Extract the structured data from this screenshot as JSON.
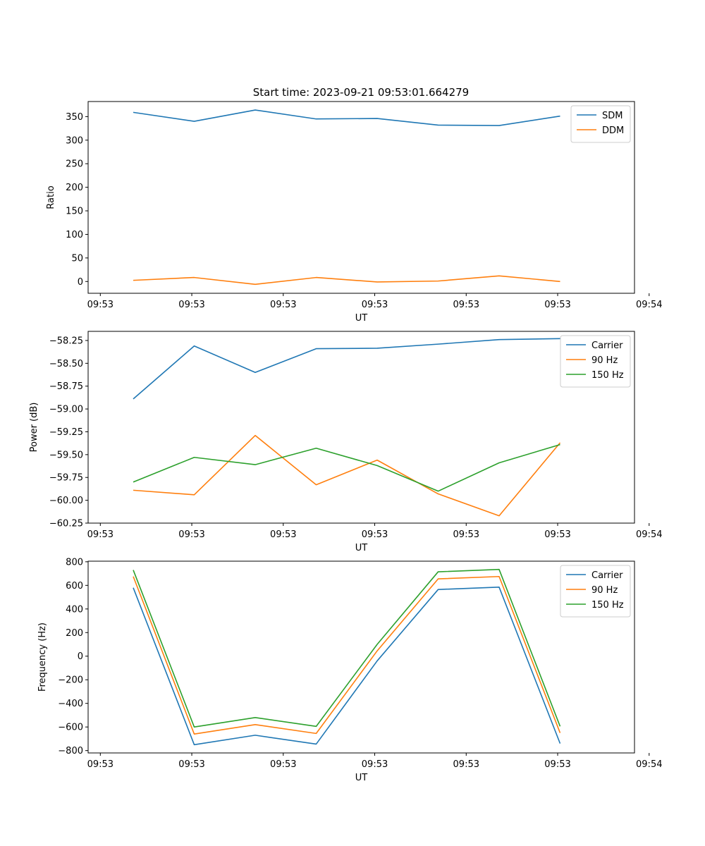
{
  "figure_title": "Start time: 2023-09-21 09:53:01.664279",
  "colors": {
    "blue": "#1f77b4",
    "orange": "#ff7f0e",
    "green": "#2ca02c"
  },
  "chart_data": [
    {
      "type": "line",
      "title": "Start time: 2023-09-21 09:53:01.664279",
      "xlabel": "UT",
      "ylabel": "Ratio",
      "x": [
        1,
        2,
        3,
        4,
        5,
        6,
        7,
        8
      ],
      "xlim": [
        0.26,
        9.22
      ],
      "xticks": [
        0.46,
        1.96,
        3.46,
        4.96,
        6.46,
        7.96,
        9.46
      ],
      "xtick_labels": [
        "09:53",
        "09:53",
        "09:53",
        "09:53",
        "09:53",
        "09:53",
        "09:54"
      ],
      "ylim": [
        -25,
        382
      ],
      "yticks": [
        0,
        50,
        100,
        150,
        200,
        250,
        300,
        350
      ],
      "ytick_labels": [
        "0",
        "50",
        "100",
        "150",
        "200",
        "250",
        "300",
        "350"
      ],
      "legend": "top-right",
      "series": [
        {
          "name": "SDM",
          "color": "#1f77b4",
          "values": [
            359,
            340,
            364,
            345,
            346,
            332,
            331,
            351
          ]
        },
        {
          "name": "DDM",
          "color": "#ff7f0e",
          "values": [
            2.5,
            8.5,
            -6,
            8.5,
            -1,
            1,
            12,
            0
          ]
        }
      ]
    },
    {
      "type": "line",
      "title": "",
      "xlabel": "UT",
      "ylabel": "Power (dB)",
      "x": [
        1,
        2,
        3,
        4,
        5,
        6,
        7,
        8
      ],
      "xlim": [
        0.26,
        9.22
      ],
      "xticks": [
        0.46,
        1.96,
        3.46,
        4.96,
        6.46,
        7.96,
        9.46
      ],
      "xtick_labels": [
        "09:53",
        "09:53",
        "09:53",
        "09:53",
        "09:53",
        "09:53",
        "09:54"
      ],
      "ylim": [
        -60.25,
        -58.15
      ],
      "yticks": [
        -60.25,
        -60.0,
        -59.75,
        -59.5,
        -59.25,
        -59.0,
        -58.75,
        -58.5,
        -58.25
      ],
      "ytick_labels": [
        "−60.25",
        "−60.00",
        "−59.75",
        "−59.50",
        "−59.25",
        "−59.00",
        "−58.75",
        "−58.50",
        "−58.25"
      ],
      "legend": "top-right",
      "series": [
        {
          "name": "Carrier",
          "color": "#1f77b4",
          "values": [
            -58.89,
            -58.31,
            -58.6,
            -58.34,
            -58.335,
            -58.29,
            -58.24,
            -58.23
          ]
        },
        {
          "name": "90 Hz",
          "color": "#ff7f0e",
          "values": [
            -59.89,
            -59.94,
            -59.29,
            -59.83,
            -59.56,
            -59.93,
            -60.17,
            -59.37
          ]
        },
        {
          "name": "150 Hz",
          "color": "#2ca02c",
          "values": [
            -59.8,
            -59.53,
            -59.61,
            -59.43,
            -59.62,
            -59.9,
            -59.59,
            -59.39
          ]
        }
      ]
    },
    {
      "type": "line",
      "title": "",
      "xlabel": "UT",
      "ylabel": "Frequency (Hz)",
      "x": [
        1,
        2,
        3,
        4,
        5,
        6,
        7,
        8
      ],
      "xlim": [
        0.26,
        9.22
      ],
      "xticks": [
        0.46,
        1.96,
        3.46,
        4.96,
        6.46,
        7.96,
        9.46
      ],
      "xtick_labels": [
        "09:53",
        "09:53",
        "09:53",
        "09:53",
        "09:53",
        "09:53",
        "09:54"
      ],
      "ylim": [
        -820,
        805
      ],
      "yticks": [
        -800,
        -600,
        -400,
        -200,
        0,
        200,
        400,
        600,
        800
      ],
      "ytick_labels": [
        "−800",
        "−600",
        "−400",
        "−200",
        "0",
        "200",
        "400",
        "600",
        "800"
      ],
      "legend": "top-right",
      "series": [
        {
          "name": "Carrier",
          "color": "#1f77b4",
          "values": [
            580,
            -750,
            -670,
            -745,
            -40,
            565,
            585,
            -740
          ]
        },
        {
          "name": "90 Hz",
          "color": "#ff7f0e",
          "values": [
            675,
            -660,
            -580,
            -655,
            45,
            655,
            675,
            -650
          ]
        },
        {
          "name": "150 Hz",
          "color": "#2ca02c",
          "values": [
            730,
            -600,
            -520,
            -595,
            100,
            715,
            735,
            -595
          ]
        }
      ]
    }
  ]
}
